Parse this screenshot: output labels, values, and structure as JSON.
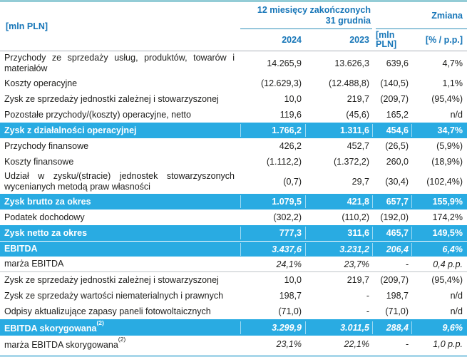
{
  "table": {
    "unit_label": "[mln PLN]",
    "period_header_line1": "12 miesięcy zakończonych",
    "period_header_line2": "31 grudnia",
    "col_2024": "2024",
    "col_2023": "2023",
    "change_header": "Zmiana",
    "change_mln_label": "[mln\nPLN]",
    "change_pct_label": "[% / p.p.]",
    "colors": {
      "highlight_row_bg": "#29ABE2",
      "highlight_row_text": "#FFFFFF",
      "header_text": "#1776B8",
      "top_border": "#93CCD6",
      "bottom_border": "#A9D7EA"
    },
    "rows": [
      {
        "label": "Przychody ze sprzedaży usług, produktów, towarów i materiałów",
        "y2024": "14.265,9",
        "y2023": "13.626,3",
        "change_mln": "639,6",
        "change_pct": "4,7%",
        "style": "normal"
      },
      {
        "label": "Koszty operacyjne",
        "y2024": "(12.629,3)",
        "y2023": "(12.488,8)",
        "change_mln": "(140,5)",
        "change_pct": "1,1%",
        "style": "normal"
      },
      {
        "label": "Zysk ze sprzedaży jednostki zależnej i stowarzyszonej",
        "y2024": "10,0",
        "y2023": "219,7",
        "change_mln": "(209,7)",
        "change_pct": "(95,4%)",
        "style": "normal"
      },
      {
        "label": "Pozostałe przychody/(koszty) operacyjne, netto",
        "y2024": "119,6",
        "y2023": "(45,6)",
        "change_mln": "165,2",
        "change_pct": "n/d",
        "style": "normal"
      },
      {
        "label": "Zysk z działalności operacyjnej",
        "y2024": "1.766,2",
        "y2023": "1.311,6",
        "change_mln": "454,6",
        "change_pct": "34,7%",
        "style": "highlight"
      },
      {
        "label": "Przychody finansowe",
        "y2024": "426,2",
        "y2023": "452,7",
        "change_mln": "(26,5)",
        "change_pct": "(5,9%)",
        "style": "normal"
      },
      {
        "label": "Koszty finansowe",
        "y2024": "(1.112,2)",
        "y2023": "(1.372,2)",
        "change_mln": "260,0",
        "change_pct": "(18,9%)",
        "style": "normal"
      },
      {
        "label": "Udział w zysku/(stracie) jednostek stowarzyszonych wycenianych metodą praw własności",
        "y2024": "(0,7)",
        "y2023": "29,7",
        "change_mln": "(30,4)",
        "change_pct": "(102,4%)",
        "style": "normal"
      },
      {
        "label": "Zysk brutto za okres",
        "y2024": "1.079,5",
        "y2023": "421,8",
        "change_mln": "657,7",
        "change_pct": "155,9%",
        "style": "highlight"
      },
      {
        "label": "Podatek dochodowy",
        "y2024": "(302,2)",
        "y2023": "(110,2)",
        "change_mln": "(192,0)",
        "change_pct": "174,2%",
        "style": "normal"
      },
      {
        "label": "Zysk netto za okres",
        "y2024": "777,3",
        "y2023": "311,6",
        "change_mln": "465,7",
        "change_pct": "149,5%",
        "style": "highlight"
      },
      {
        "label": "EBITDA",
        "y2024": "3.437,6",
        "y2023": "3.231,2",
        "change_mln": "206,4",
        "change_pct": "6,4%",
        "style": "highlight-italic",
        "gap_top": true
      },
      {
        "label": "marża EBITDA",
        "y2024": "24,1%",
        "y2023": "23,7%",
        "change_mln": "-",
        "change_pct": "0,4 p.p.",
        "style": "italic-values",
        "divider_bottom": true
      },
      {
        "label": "Zysk ze sprzedaży jednostki zależnej i stowarzyszonej",
        "y2024": "10,0",
        "y2023": "219,7",
        "change_mln": "(209,7)",
        "change_pct": "(95,4%)",
        "style": "normal"
      },
      {
        "label": "Zysk ze sprzedaży wartości niematerialnych i prawnych",
        "y2024": "198,7",
        "y2023": "-",
        "change_mln": "198,7",
        "change_pct": "n/d",
        "style": "normal"
      },
      {
        "label": "Odpisy aktualizujące zapasy paneli fotowoltaicznych",
        "y2024": "(71,0)",
        "y2023": "-",
        "change_mln": "(71,0)",
        "change_pct": "n/d",
        "style": "normal"
      },
      {
        "label": "EBITDA skorygowana",
        "label_sup": "(2)",
        "y2024": "3.299,9",
        "y2023": "3.011,5",
        "change_mln": "288,4",
        "change_pct": "9,6%",
        "style": "highlight-italic"
      },
      {
        "label": "marża EBITDA skorygowana",
        "label_sup": "(2)",
        "y2024": "23,1%",
        "y2023": "22,1%",
        "change_mln": "-",
        "change_pct": "1,0 p.p.",
        "style": "italic-values"
      }
    ]
  }
}
